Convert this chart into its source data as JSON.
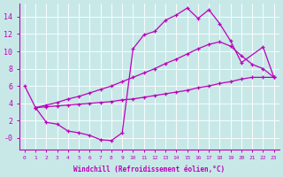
{
  "bg_color": "#c8e8e8",
  "line_color": "#bb00bb",
  "xlabel": "Windchill (Refroidissement éolien,°C)",
  "xlim": [
    -0.5,
    23.5
  ],
  "ylim": [
    -1.3,
    15.5
  ],
  "xticks": [
    0,
    1,
    2,
    3,
    4,
    5,
    6,
    7,
    8,
    9,
    10,
    11,
    12,
    13,
    14,
    15,
    16,
    17,
    18,
    19,
    20,
    21,
    22,
    23
  ],
  "yticks": [
    0,
    2,
    4,
    6,
    8,
    10,
    12,
    14
  ],
  "ytick_labels": [
    "-0",
    "2",
    "4",
    "6",
    "8",
    "10",
    "12",
    "14"
  ],
  "line1_x": [
    0,
    1,
    2,
    3,
    4,
    5,
    6,
    7,
    8,
    9,
    10,
    11,
    12,
    13,
    14,
    15,
    16,
    17,
    18,
    19,
    20,
    22,
    23
  ],
  "line1_y": [
    6.0,
    3.5,
    1.8,
    1.6,
    0.8,
    0.6,
    0.3,
    -0.2,
    -0.3,
    0.6,
    10.3,
    11.9,
    12.3,
    13.6,
    14.2,
    15.0,
    13.8,
    14.8,
    13.2,
    11.2,
    8.7,
    10.5,
    7.0
  ],
  "line2_x": [
    1,
    2,
    3,
    4,
    5,
    6,
    7,
    8,
    9,
    10,
    11,
    12,
    13,
    14,
    15,
    16,
    17,
    18,
    19,
    20,
    21,
    22,
    23
  ],
  "line2_y": [
    3.5,
    3.8,
    4.1,
    4.5,
    4.8,
    5.2,
    5.6,
    6.0,
    6.5,
    7.0,
    7.5,
    8.0,
    8.6,
    9.1,
    9.7,
    10.3,
    10.8,
    11.1,
    10.6,
    9.5,
    8.5,
    8.0,
    7.0
  ],
  "line3_x": [
    1,
    2,
    3,
    4,
    5,
    6,
    7,
    8,
    9,
    10,
    11,
    12,
    13,
    14,
    15,
    16,
    17,
    18,
    19,
    20,
    21,
    22,
    23
  ],
  "line3_y": [
    3.5,
    3.6,
    3.7,
    3.8,
    3.9,
    4.0,
    4.1,
    4.2,
    4.4,
    4.5,
    4.7,
    4.9,
    5.1,
    5.3,
    5.5,
    5.8,
    6.0,
    6.3,
    6.5,
    6.8,
    7.0,
    7.0,
    7.0
  ]
}
